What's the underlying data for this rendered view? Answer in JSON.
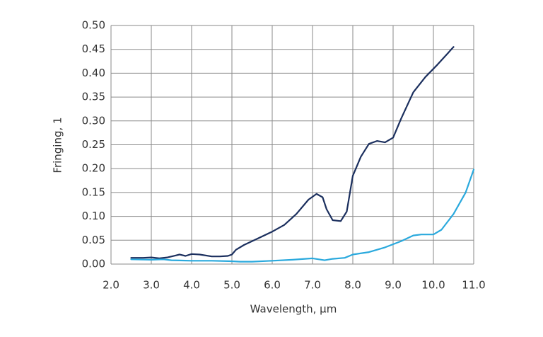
{
  "chart_data": {
    "type": "line",
    "x_label": "Wavelength, µm",
    "y_label": "Fringing, 1",
    "xlim": [
      2.0,
      11.0
    ],
    "ylim": [
      0,
      0.5
    ],
    "grid": true,
    "xticks": [
      {
        "value": 2,
        "label": "2.0"
      },
      {
        "value": 3,
        "label": "3.0"
      },
      {
        "value": 4,
        "label": "4.0"
      },
      {
        "value": 5,
        "label": "5.0"
      },
      {
        "value": 6,
        "label": "6.0"
      },
      {
        "value": 7,
        "label": "7.0"
      },
      {
        "value": 8,
        "label": "8.0"
      },
      {
        "value": 9,
        "label": "9.0"
      },
      {
        "value": 10,
        "label": "10.0"
      },
      {
        "value": 11,
        "label": "11.0"
      }
    ],
    "yticks": [
      {
        "value": 0,
        "label": "0.00"
      },
      {
        "value": 0.05,
        "label": "0.05"
      },
      {
        "value": 0.1,
        "label": "0.10"
      },
      {
        "value": 0.15,
        "label": "0.15"
      },
      {
        "value": 0.2,
        "label": "0.20"
      },
      {
        "value": 0.25,
        "label": "0.25"
      },
      {
        "value": 0.3,
        "label": "0.30"
      },
      {
        "value": 0.35,
        "label": "0.35"
      },
      {
        "value": 0.4,
        "label": "0.40"
      },
      {
        "value": 0.45,
        "label": "0.45"
      },
      {
        "value": 0.5,
        "label": "0.50"
      }
    ],
    "series": [
      {
        "color": "#1b2f5e",
        "x": [
          2.5,
          2.8,
          3.0,
          3.2,
          3.4,
          3.6,
          3.7,
          3.85,
          4.0,
          4.2,
          4.5,
          4.7,
          4.9,
          5.0,
          5.1,
          5.3,
          5.6,
          6.0,
          6.3,
          6.6,
          6.9,
          7.1,
          7.25,
          7.35,
          7.5,
          7.7,
          7.85,
          8.0,
          8.2,
          8.4,
          8.6,
          8.8,
          9.0,
          9.2,
          9.5,
          9.8,
          10.1,
          10.5
        ],
        "values": [
          0.013,
          0.013,
          0.014,
          0.012,
          0.014,
          0.018,
          0.02,
          0.017,
          0.021,
          0.02,
          0.016,
          0.016,
          0.017,
          0.02,
          0.03,
          0.04,
          0.052,
          0.068,
          0.082,
          0.105,
          0.135,
          0.147,
          0.14,
          0.115,
          0.092,
          0.09,
          0.11,
          0.185,
          0.225,
          0.252,
          0.258,
          0.255,
          0.265,
          0.305,
          0.36,
          0.392,
          0.418,
          0.455
        ]
      },
      {
        "color": "#2aa9dd",
        "x": [
          2.5,
          3.0,
          3.3,
          3.5,
          4.0,
          4.5,
          5.0,
          5.2,
          5.5,
          6.0,
          6.5,
          7.0,
          7.3,
          7.5,
          7.8,
          8.0,
          8.4,
          8.8,
          9.2,
          9.5,
          9.7,
          10.0,
          10.2,
          10.5,
          10.8,
          11.0
        ],
        "values": [
          0.01,
          0.009,
          0.01,
          0.008,
          0.007,
          0.007,
          0.006,
          0.005,
          0.005,
          0.007,
          0.009,
          0.012,
          0.008,
          0.011,
          0.013,
          0.02,
          0.025,
          0.035,
          0.048,
          0.06,
          0.062,
          0.062,
          0.072,
          0.105,
          0.15,
          0.198
        ]
      }
    ]
  }
}
